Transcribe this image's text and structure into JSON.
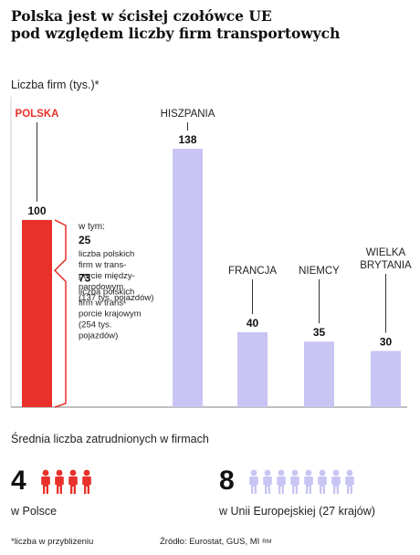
{
  "title_lines": [
    "Polska jest w ścisłej czołówce UE",
    "pod względem liczby firm transportowych"
  ],
  "colors": {
    "poland": "#e8312a",
    "other": "#c8c5f4",
    "axis": "#999999",
    "text": "#1a1a1a"
  },
  "chart_data": {
    "type": "bar",
    "ylabel": "Liczba firm (tys.)*",
    "categories": [
      "POLSKA",
      "HISZPANIA",
      "FRANCJA",
      "NIEMCY",
      "WIELKA BRYTANIA"
    ],
    "category_label_lines": [
      [
        "POLSKA"
      ],
      [
        "HISZPANIA"
      ],
      [
        "FRANCJA"
      ],
      [
        "NIEMCY"
      ],
      [
        "WIELKA",
        "BRYTANIA"
      ]
    ],
    "values": [
      100,
      138,
      40,
      35,
      30
    ],
    "ylim": [
      0,
      145
    ],
    "grid": false,
    "poland_breakdown": {
      "intro": "w tym:",
      "segments": [
        {
          "value": 25,
          "lines": [
            "liczba polskich",
            "firm w trans-",
            "porcie między-",
            "narodowym",
            "(137 tys. pojazdów)"
          ]
        },
        {
          "value": 73,
          "lines": [
            "liczba polskich",
            "firm w trans-",
            "porcie krajowym",
            "(254 tys.",
            "pojazdów)"
          ]
        }
      ]
    }
  },
  "employees": {
    "heading": "Średnia liczba zatrudnionych w firmach",
    "poland": {
      "value": "4",
      "count": 4,
      "caption": "w Polsce"
    },
    "eu": {
      "value": "8",
      "count": 8,
      "caption": "w Unii Europejskiej (27 krajów)"
    }
  },
  "footer": {
    "note": "*liczba w przybliżeniu",
    "source": "Źródło: Eurostat, GUS, MI",
    "mark": "RM"
  }
}
